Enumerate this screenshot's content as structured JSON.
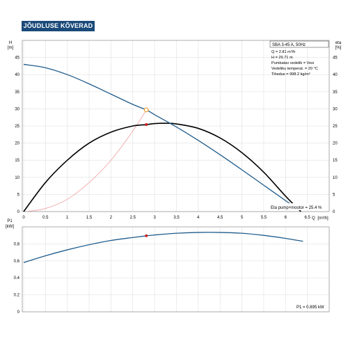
{
  "header": {
    "title": "JÕUDLUSE KÕVERAD"
  },
  "info_box": {
    "pump_model": "SBA 3-45 A, 50Hz",
    "lines": [
      "Q = 2.81 m³/h",
      "H = 29.71 m",
      "Pumbatav vedelik = Vesi",
      "Vedeliku temperat.  = 20 °C",
      "Tihedus = 998.2 kg/m³"
    ]
  },
  "colors": {
    "header_bg": "#1a4a7a",
    "qh_curve": "#1f5c8c",
    "eta_curve": "#000000",
    "system_curve": "#f0a0a0",
    "p1_curve": "#1f5c8c",
    "duty_point": "#e8a030",
    "eta_point": "#d02020",
    "grid": "#e0e0e0"
  },
  "chart_data": [
    {
      "type": "line",
      "name": "top-chart",
      "ylabel": "H",
      "yunit": "[m]",
      "y2label": "eta",
      "y2unit": "[%]",
      "xlabel": "Q",
      "xunit": "[m³/h]",
      "xlim": [
        0,
        7
      ],
      "ylim": [
        0,
        50
      ],
      "xticks": [
        "0",
        "0.5",
        "1",
        "1.5",
        "2",
        "2.5",
        "3",
        "3.5",
        "4",
        "4.5",
        "5",
        "5.5",
        "6",
        "6.5"
      ],
      "yticks": [
        "0",
        "5",
        "10",
        "15",
        "20",
        "25",
        "30",
        "35",
        "40",
        "45"
      ],
      "y2ticks": [
        "0",
        "5",
        "10",
        "15",
        "20",
        "25",
        "30",
        "35",
        "40",
        "45"
      ],
      "grid": true,
      "series": [
        {
          "key": "qh",
          "x": [
            0,
            0.5,
            1,
            1.5,
            2,
            2.5,
            2.81,
            3,
            3.5,
            4,
            4.5,
            5,
            5.5,
            6,
            6.25
          ],
          "y": [
            43.0,
            42.0,
            40.0,
            37.3,
            34.3,
            31.3,
            29.7,
            28.3,
            24.7,
            20.8,
            16.6,
            12.2,
            7.7,
            3.2,
            1.0
          ]
        },
        {
          "key": "eta",
          "x": [
            0,
            0.5,
            1,
            1.5,
            2,
            2.5,
            2.81,
            3,
            3.25,
            3.5,
            4,
            4.5,
            5,
            5.5,
            6,
            6.35
          ],
          "y": [
            0,
            8.5,
            15.0,
            20.0,
            23.2,
            25.0,
            25.4,
            25.7,
            25.8,
            25.6,
            24.3,
            21.5,
            17.2,
            11.5,
            4.5,
            0
          ]
        },
        {
          "key": "system",
          "x": [
            0.1,
            0.5,
            1,
            1.5,
            2,
            2.5,
            2.81
          ],
          "y": [
            0.1,
            0.9,
            3.6,
            8.5,
            15.0,
            23.5,
            29.7
          ]
        }
      ],
      "duty_point": {
        "x": 2.81,
        "y": 29.7
      },
      "eta_point": {
        "x": 2.81,
        "y": 25.4
      },
      "annotation": "Eta pump+mootor = 25.4 %"
    },
    {
      "type": "line",
      "name": "bottom-chart",
      "ylabel": "P1",
      "yunit": "[kW]",
      "xlim": [
        0,
        7
      ],
      "ylim": [
        0,
        1.0
      ],
      "yticks": [
        "0",
        "0.2",
        "0.4",
        "0.6",
        "0.8"
      ],
      "grid": true,
      "series": [
        {
          "key": "p1",
          "x": [
            0,
            0.5,
            1,
            1.5,
            2,
            2.5,
            2.81,
            3,
            3.5,
            4,
            4.5,
            5,
            5.5,
            6,
            6.4
          ],
          "y": [
            0.58,
            0.66,
            0.73,
            0.79,
            0.84,
            0.875,
            0.895,
            0.905,
            0.925,
            0.935,
            0.935,
            0.925,
            0.9,
            0.865,
            0.83
          ]
        }
      ],
      "point": {
        "x": 2.81,
        "y": 0.895
      },
      "annotation": "P1 = 0.895 kW"
    }
  ]
}
